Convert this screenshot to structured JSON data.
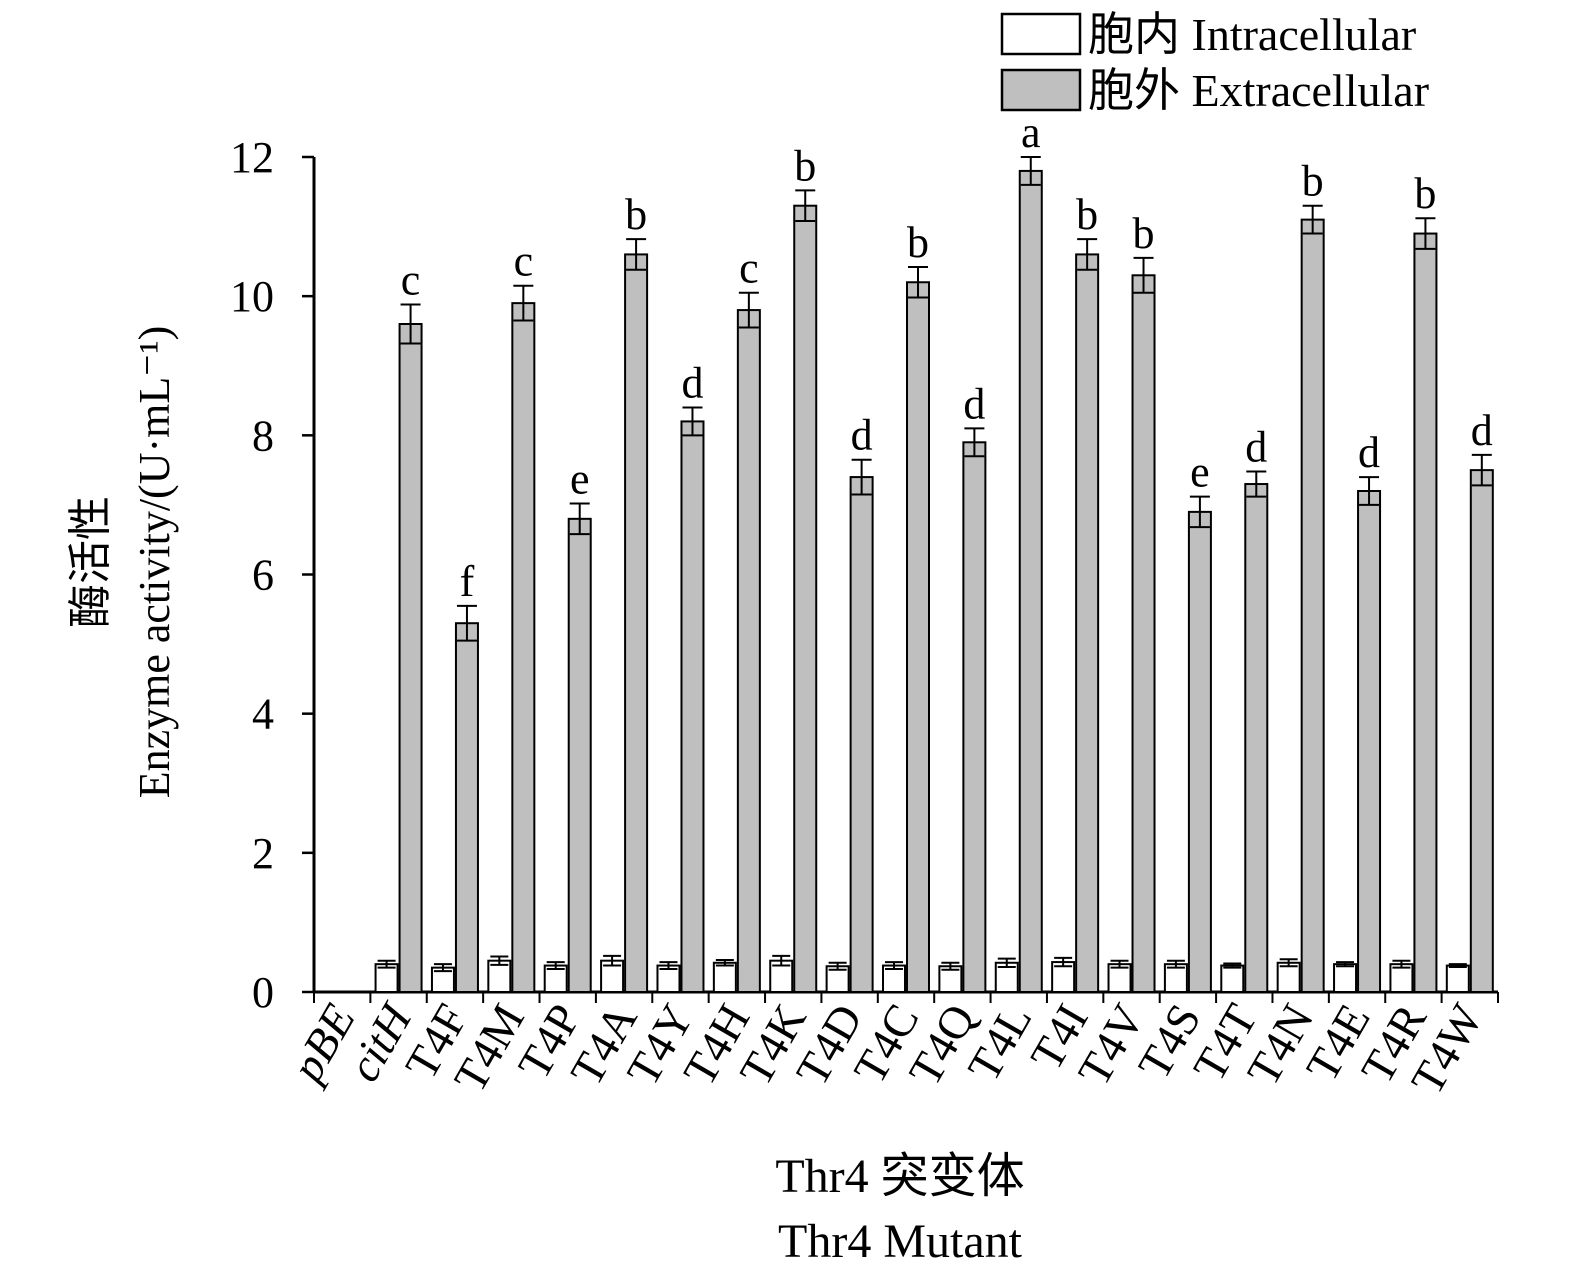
{
  "chart_data": {
    "type": "bar",
    "ylabel_cn": "酶活性",
    "ylabel_en": "Enzyme activity/(U·mL⁻¹)",
    "xlabel_cn": "Thr4 突变体",
    "xlabel_en": "Thr4 Mutant",
    "ylim": [
      0,
      12
    ],
    "yticks": [
      "0",
      "2",
      "4",
      "6",
      "8",
      "10",
      "12"
    ],
    "categories": [
      "pBE",
      "citH",
      "T4F",
      "T4M",
      "T4P",
      "T4A",
      "T4Y",
      "T4H",
      "T4K",
      "T4D",
      "T4C",
      "T4Q",
      "T4L",
      "T4I",
      "T4V",
      "T4S",
      "T4T",
      "T4N",
      "T4E",
      "T4R",
      "T4W"
    ],
    "italic_categories": [
      "pBE",
      "citH"
    ],
    "legend_position": "top-right",
    "series": [
      {
        "name": "胞内 Intracellular",
        "color": "#ffffff",
        "values": [
          0,
          0.4,
          0.35,
          0.45,
          0.38,
          0.45,
          0.38,
          0.42,
          0.45,
          0.37,
          0.38,
          0.37,
          0.42,
          0.43,
          0.4,
          0.4,
          0.38,
          0.42,
          0.4,
          0.4,
          0.38
        ],
        "errors": [
          0,
          0.05,
          0.05,
          0.06,
          0.05,
          0.07,
          0.05,
          0.04,
          0.07,
          0.05,
          0.05,
          0.05,
          0.06,
          0.06,
          0.05,
          0.05,
          0.03,
          0.05,
          0.03,
          0.05,
          0.02
        ]
      },
      {
        "name": "胞外 Extracellular",
        "color": "#bfbfbf",
        "values": [
          null,
          9.6,
          5.3,
          9.9,
          6.8,
          10.6,
          8.2,
          9.8,
          11.3,
          7.4,
          10.2,
          7.9,
          11.8,
          10.6,
          10.3,
          6.9,
          7.3,
          11.1,
          7.2,
          10.9,
          7.5
        ],
        "errors": [
          0,
          0.28,
          0.25,
          0.25,
          0.22,
          0.22,
          0.2,
          0.25,
          0.22,
          0.25,
          0.22,
          0.2,
          0.2,
          0.22,
          0.25,
          0.22,
          0.18,
          0.2,
          0.2,
          0.22,
          0.22
        ],
        "significance": [
          "",
          "c",
          "f",
          "c",
          "e",
          "b",
          "d",
          "c",
          "b",
          "d",
          "b",
          "d",
          "a",
          "b",
          "b",
          "e",
          "d",
          "b",
          "d",
          "b",
          "d"
        ]
      }
    ]
  }
}
